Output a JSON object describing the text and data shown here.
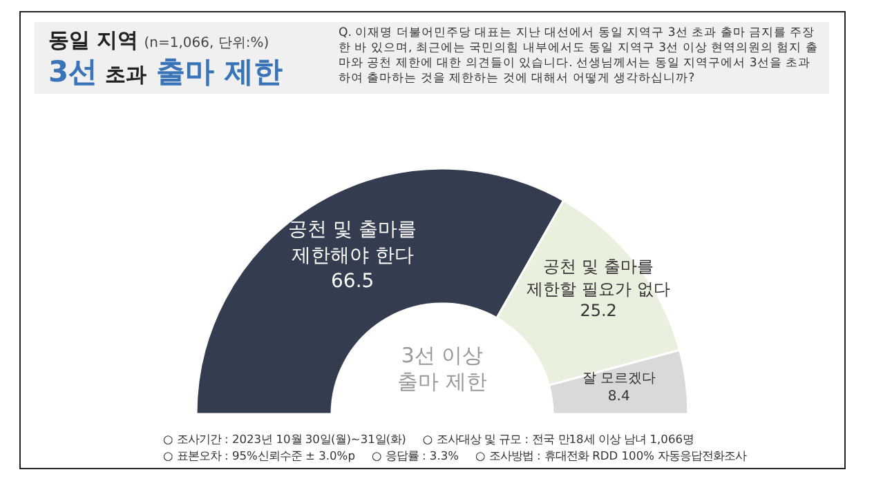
{
  "chart_data": {
    "type": "donut",
    "title": "동일 지역",
    "subtitle": "3선 초과 출마 제한",
    "categories": [
      "공천 및 출마를\n제한해야 한다",
      "공천 및 출마를\n제한할 필요가 없다",
      "잘 모르겠다"
    ],
    "values": [
      66.5,
      25.2,
      8.4
    ],
    "colors": [
      "#333d4f",
      "#e9f1de",
      "#d9d9d9"
    ],
    "data_labels": true,
    "annotations": [
      "(n=1,066, 단위:%)",
      "Q. 이재명 더불어민주당 대표는 지난 대선에서 동일 지역구 3선 초과 출마 금지를 주장한 바 있으며, 최근에는 국민의힘 내부에서도 동일 지역구 3선 이상 현역의원의 험지 출마와 공천 제한에 대한 의견들이 있습니다. 선생님께서는 동일 지역구에서 3선을 초과하여 출마하는 것을 제한하는 것에 대해서 어떻게 생각하십니까?",
      "3선 이상\n출마 제한",
      "○ 조사기간 : 2023년 10월 30일(월)~31일(화)",
      "○ 조사대상 및 규모 : 전국 만18세 이상 남녀  1,066명",
      "○ 표본오차 : 95%신뢰수준 ± 3.0%p",
      "○ 응답률 : 3.3%",
      "○ 조사방법 : 휴대전화 RDD 100% 자동응답전화조사"
    ]
  }
}
